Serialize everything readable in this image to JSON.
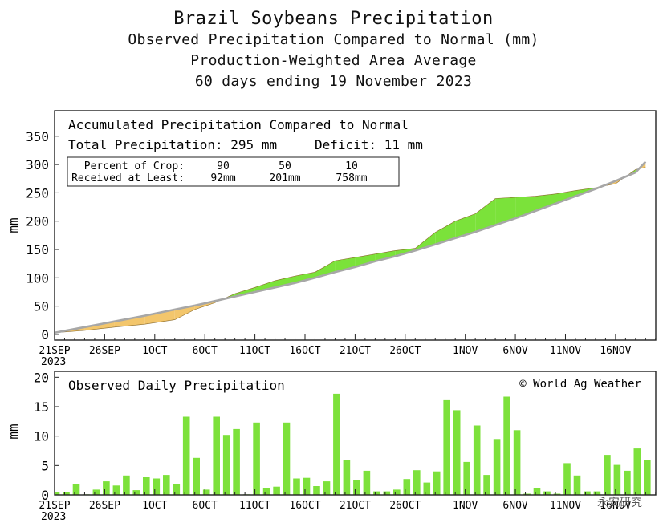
{
  "header": {
    "title": "Brazil Soybeans Precipitation",
    "subtitle1": "Observed Precipitation Compared to Normal (mm)",
    "subtitle2": "Production-Weighted Area Average",
    "subtitle3": "60 days ending 19 November 2023"
  },
  "colors": {
    "deficit": "#f3c66c",
    "surplus": "#7be23a",
    "normal_line": "#a7a7a7",
    "bar": "#7de13b",
    "axis": "#222222"
  },
  "x_axis": {
    "tick_labels": [
      "21SEP",
      "26SEP",
      "1OCT",
      "6OCT",
      "11OCT",
      "16OCT",
      "21OCT",
      "26OCT",
      "1NOV",
      "6NOV",
      "11NOV",
      "16NOV"
    ],
    "tick_days": [
      0,
      5,
      10,
      15,
      20,
      25,
      30,
      35,
      41,
      46,
      51,
      56
    ],
    "year_label": "2023"
  },
  "watermark": "永安研究",
  "chart_data": [
    {
      "type": "area",
      "title": "Accumulated Precipitation Compared to Normal",
      "info": {
        "total_line": "Total Precipitation: 295 mm",
        "deficit_line": "Deficit: 11 mm",
        "crop_row": [
          "Percent of Crop:",
          "90",
          "50",
          "10"
        ],
        "received_row": [
          "Received at Least:",
          "92mm",
          "201mm",
          "758mm"
        ]
      },
      "ylabel": "mm",
      "ylim": [
        -10,
        395
      ],
      "yticks": [
        0,
        50,
        100,
        150,
        200,
        250,
        300,
        350
      ],
      "x_days": [
        0,
        3,
        6,
        9,
        12,
        14,
        16,
        18,
        20,
        22,
        24,
        26,
        28,
        30,
        32,
        34,
        36,
        38,
        40,
        42,
        44,
        46,
        48,
        50,
        52,
        54,
        56,
        58,
        59
      ],
      "series": [
        {
          "name": "Observed",
          "values": [
            3,
            7,
            13,
            18,
            26,
            44,
            56,
            72,
            83,
            95,
            103,
            110,
            130,
            136,
            142,
            148,
            152,
            180,
            200,
            213,
            240,
            242,
            244,
            248,
            254,
            259,
            266,
            291,
            295
          ]
        },
        {
          "name": "Normal",
          "values": [
            3,
            13,
            23,
            33,
            44,
            51,
            59,
            67,
            75,
            83,
            91,
            100,
            110,
            119,
            129,
            138,
            148,
            159,
            170,
            181,
            193,
            205,
            218,
            231,
            244,
            257,
            271,
            286,
            305
          ]
        }
      ]
    },
    {
      "type": "bar",
      "title": "Observed Daily Precipitation",
      "credit": "© World Ag Weather",
      "ylabel": "mm",
      "ylim": [
        0,
        21
      ],
      "yticks": [
        0,
        5,
        10,
        15,
        20
      ],
      "x_days": [
        0,
        1,
        2,
        3,
        4,
        5,
        6,
        7,
        8,
        9,
        10,
        11,
        12,
        13,
        14,
        15,
        16,
        17,
        18,
        19,
        20,
        21,
        22,
        23,
        24,
        25,
        26,
        27,
        28,
        29,
        30,
        31,
        32,
        33,
        34,
        35,
        36,
        37,
        38,
        39,
        40,
        41,
        42,
        43,
        44,
        45,
        46,
        47,
        48,
        49,
        50,
        51,
        52,
        53,
        54,
        55,
        56,
        57,
        58,
        59
      ],
      "values": [
        0.5,
        0.5,
        1.9,
        0.1,
        0.9,
        2.3,
        1.6,
        3.3,
        0.8,
        3.0,
        2.8,
        3.4,
        1.9,
        13.3,
        6.3,
        0.9,
        13.3,
        10.2,
        11.2,
        0.1,
        12.3,
        1.1,
        1.4,
        12.3,
        2.8,
        2.9,
        1.5,
        2.3,
        17.2,
        6.0,
        2.5,
        4.1,
        0.6,
        0.6,
        0.9,
        2.7,
        4.2,
        2.1,
        4.0,
        16.1,
        14.4,
        5.6,
        11.8,
        3.4,
        9.5,
        16.7,
        11.0,
        0.2,
        1.1,
        0.6,
        0.2,
        5.4,
        3.3,
        0.6,
        0.6,
        6.8,
        5.1,
        4.1,
        7.9,
        5.9
      ]
    }
  ]
}
